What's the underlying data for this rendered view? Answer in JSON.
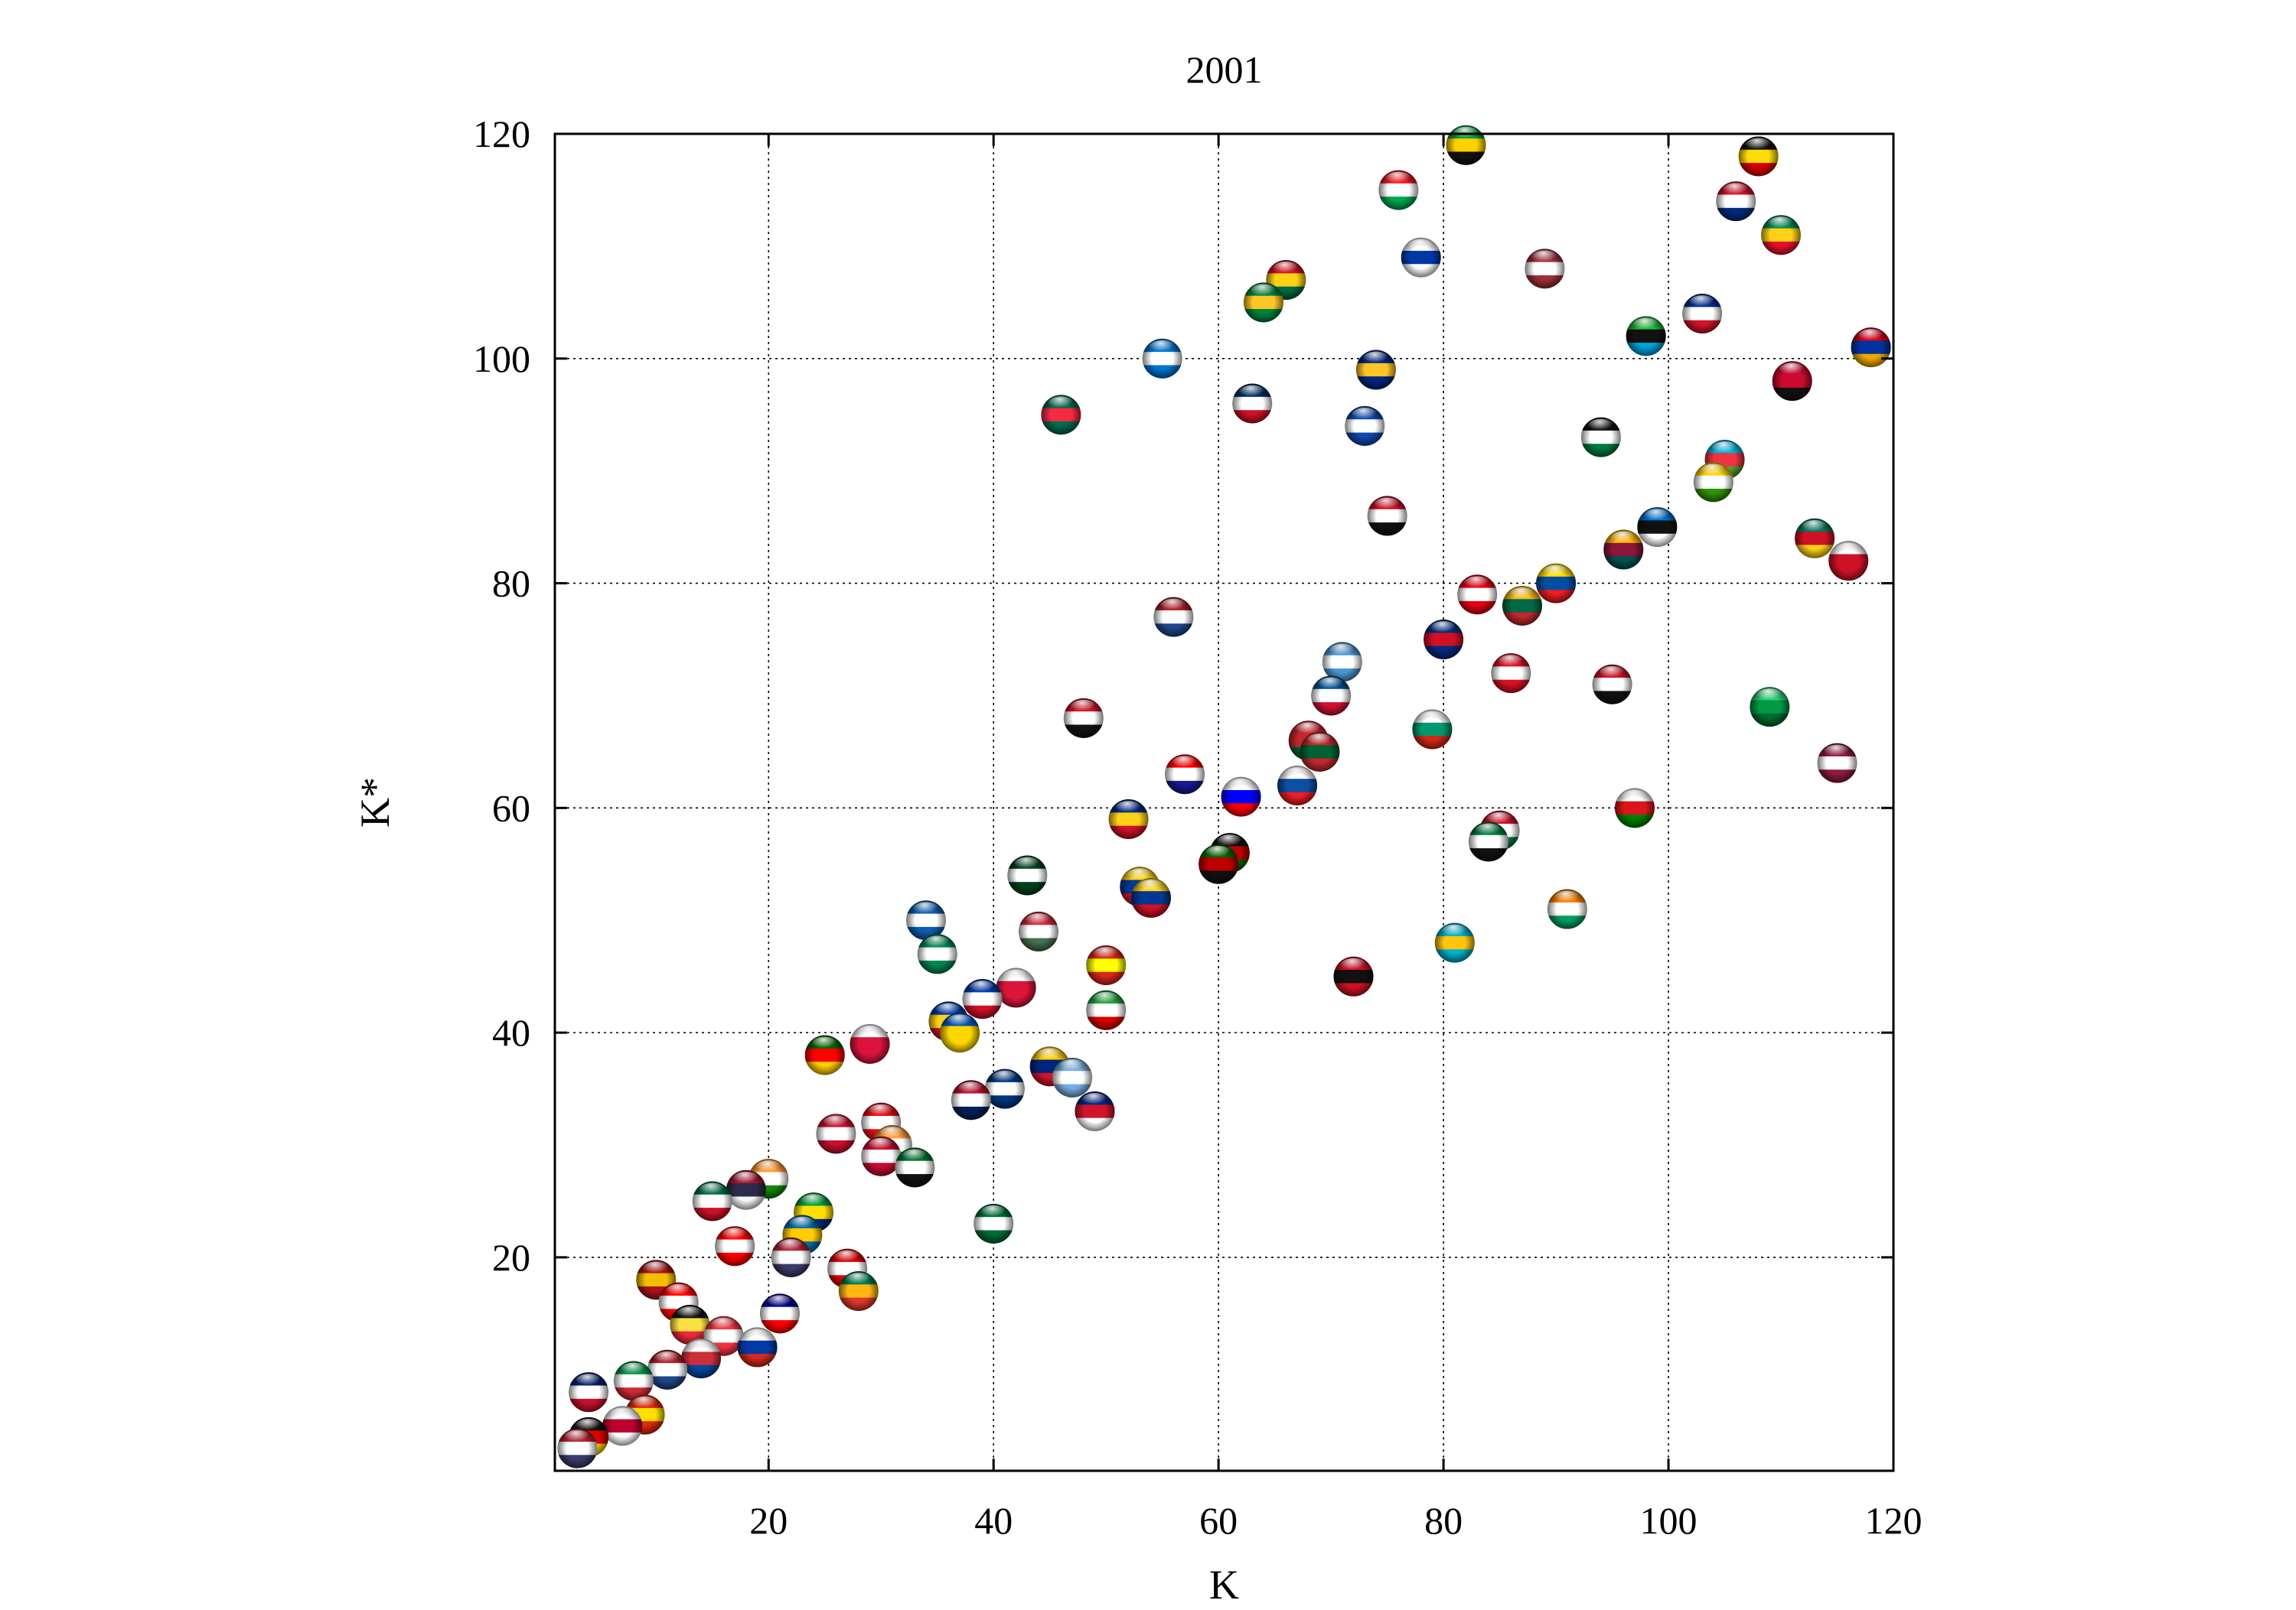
{
  "chart_data": {
    "type": "scatter",
    "title": "2001",
    "xlabel": "K",
    "ylabel": "K*",
    "xlim": [
      1,
      120
    ],
    "ylim": [
      1,
      120
    ],
    "xticks": [
      "20",
      "40",
      "60",
      "80",
      "100",
      "120"
    ],
    "yticks": [
      "20",
      "40",
      "60",
      "80",
      "100",
      "120"
    ],
    "grid": true,
    "marker": "country flag spheres",
    "points": [
      {
        "x": 82,
        "y": 119,
        "colors": [
          "#009b3a",
          "#fed100",
          "#111111"
        ]
      },
      {
        "x": 76,
        "y": 115,
        "colors": [
          "#ee161f",
          "#ffffff",
          "#00a651"
        ]
      },
      {
        "x": 108,
        "y": 118,
        "colors": [
          "#111111",
          "#fcdc04",
          "#d90000"
        ]
      },
      {
        "x": 106,
        "y": 114,
        "colors": [
          "#ce1126",
          "#ffffff",
          "#002b7f"
        ]
      },
      {
        "x": 110,
        "y": 111,
        "colors": [
          "#008751",
          "#fcd116",
          "#e8112d"
        ]
      },
      {
        "x": 66,
        "y": 107,
        "colors": [
          "#ce1126",
          "#fcd116",
          "#006b3f"
        ]
      },
      {
        "x": 64,
        "y": 105,
        "colors": [
          "#00843d",
          "#ffc726",
          "#00843d"
        ]
      },
      {
        "x": 78,
        "y": 109,
        "colors": [
          "#ffffff",
          "#0038a8",
          "#ffffff"
        ]
      },
      {
        "x": 89,
        "y": 108,
        "colors": [
          "#9e3039",
          "#ffffff",
          "#9e3039"
        ]
      },
      {
        "x": 103,
        "y": 104,
        "colors": [
          "#002a8f",
          "#ffffff",
          "#cf142b"
        ]
      },
      {
        "x": 98,
        "y": 102,
        "colors": [
          "#1eb53a",
          "#111111",
          "#00a3dd"
        ]
      },
      {
        "x": 118,
        "y": 101,
        "colors": [
          "#d90012",
          "#0033a0",
          "#f2a800"
        ]
      },
      {
        "x": 55,
        "y": 100,
        "colors": [
          "#0073cf",
          "#ffffff",
          "#0073cf"
        ]
      },
      {
        "x": 74,
        "y": 99,
        "colors": [
          "#00267f",
          "#ffc726",
          "#00267f"
        ]
      },
      {
        "x": 111,
        "y": 98,
        "colors": [
          "#cc092f",
          "#cc092f",
          "#111111"
        ]
      },
      {
        "x": 46,
        "y": 95,
        "colors": [
          "#006a4e",
          "#f42a41",
          "#006a4e"
        ]
      },
      {
        "x": 63,
        "y": 96,
        "colors": [
          "#002d62",
          "#ffffff",
          "#ce1126"
        ]
      },
      {
        "x": 73,
        "y": 94,
        "colors": [
          "#0f47af",
          "#ffffff",
          "#0f47af"
        ]
      },
      {
        "x": 94,
        "y": 93,
        "colors": [
          "#111111",
          "#ffffff",
          "#007a3d"
        ]
      },
      {
        "x": 105,
        "y": 91,
        "colors": [
          "#00b5e2",
          "#ef3340",
          "#509e2f"
        ]
      },
      {
        "x": 104,
        "y": 89,
        "colors": [
          "#ffd200",
          "#ffffff",
          "#319208"
        ]
      },
      {
        "x": 75,
        "y": 86,
        "colors": [
          "#ce1126",
          "#ffffff",
          "#111111"
        ]
      },
      {
        "x": 99,
        "y": 85,
        "colors": [
          "#0072ce",
          "#111111",
          "#ffffff"
        ]
      },
      {
        "x": 96,
        "y": 83,
        "colors": [
          "#ffb700",
          "#8d153a",
          "#00534e"
        ]
      },
      {
        "x": 113,
        "y": 84,
        "colors": [
          "#007a5e",
          "#ce1126",
          "#fcd116"
        ]
      },
      {
        "x": 116,
        "y": 82,
        "colors": [
          "#ffffff",
          "#ce1126",
          "#ce1126"
        ]
      },
      {
        "x": 83,
        "y": 79,
        "colors": [
          "#e70013",
          "#ffffff",
          "#e70013"
        ]
      },
      {
        "x": 90,
        "y": 80,
        "colors": [
          "#ffdd00",
          "#034ea2",
          "#ed1c24"
        ]
      },
      {
        "x": 87,
        "y": 78,
        "colors": [
          "#fdb913",
          "#006a44",
          "#c1272d"
        ]
      },
      {
        "x": 56,
        "y": 77,
        "colors": [
          "#ae1c28",
          "#ffffff",
          "#21468b"
        ]
      },
      {
        "x": 80,
        "y": 75,
        "colors": [
          "#002b7f",
          "#ce1126",
          "#002b7f"
        ]
      },
      {
        "x": 71,
        "y": 73,
        "colors": [
          "#4997d0",
          "#ffffff",
          "#4997d0"
        ]
      },
      {
        "x": 86,
        "y": 72,
        "colors": [
          "#d91023",
          "#ffffff",
          "#d91023"
        ]
      },
      {
        "x": 95,
        "y": 71,
        "colors": [
          "#ce1126",
          "#ffffff",
          "#111111"
        ]
      },
      {
        "x": 70,
        "y": 70,
        "colors": [
          "#005293",
          "#ffffff",
          "#d21034"
        ]
      },
      {
        "x": 48,
        "y": 68,
        "colors": [
          "#ce1126",
          "#ffffff",
          "#111111"
        ]
      },
      {
        "x": 79,
        "y": 67,
        "colors": [
          "#ffffff",
          "#00966e",
          "#d62612"
        ]
      },
      {
        "x": 68,
        "y": 66,
        "colors": [
          "#c1272d",
          "#c1272d",
          "#006233"
        ]
      },
      {
        "x": 69,
        "y": 65,
        "colors": [
          "#c1272d",
          "#006233",
          "#c1272d"
        ]
      },
      {
        "x": 109,
        "y": 69,
        "colors": [
          "#2ecc71",
          "#009a44",
          "#006b2f"
        ]
      },
      {
        "x": 115,
        "y": 64,
        "colors": [
          "#8d1b3d",
          "#ffffff",
          "#8d1b3d"
        ]
      },
      {
        "x": 57,
        "y": 63,
        "colors": [
          "#ff0000",
          "#ffffff",
          "#171796"
        ]
      },
      {
        "x": 67,
        "y": 62,
        "colors": [
          "#ffffff",
          "#0b4ea2",
          "#ee1c25"
        ]
      },
      {
        "x": 62,
        "y": 61,
        "colors": [
          "#ffffff",
          "#0000ff",
          "#ff0000"
        ]
      },
      {
        "x": 52,
        "y": 59,
        "colors": [
          "#002b7f",
          "#fcd116",
          "#ce1126"
        ]
      },
      {
        "x": 97,
        "y": 60,
        "colors": [
          "#ffffff",
          "#db161b",
          "#008000"
        ]
      },
      {
        "x": 85,
        "y": 58,
        "colors": [
          "#ce1126",
          "#ffffff",
          "#007a3d"
        ]
      },
      {
        "x": 84,
        "y": 57,
        "colors": [
          "#007a3d",
          "#ffffff",
          "#111111"
        ]
      },
      {
        "x": 61,
        "y": 56,
        "colors": [
          "#111111",
          "#bb0000",
          "#006600"
        ]
      },
      {
        "x": 60,
        "y": 55,
        "colors": [
          "#006600",
          "#bb0000",
          "#111111"
        ]
      },
      {
        "x": 43,
        "y": 54,
        "colors": [
          "#01411c",
          "#ffffff",
          "#01411c"
        ]
      },
      {
        "x": 53,
        "y": 53,
        "colors": [
          "#fcd116",
          "#003893",
          "#ce1126"
        ]
      },
      {
        "x": 54,
        "y": 52,
        "colors": [
          "#fcd116",
          "#003893",
          "#ce1126"
        ]
      },
      {
        "x": 91,
        "y": 51,
        "colors": [
          "#f77f00",
          "#ffffff",
          "#009e60"
        ]
      },
      {
        "x": 34,
        "y": 50,
        "colors": [
          "#0d5eaf",
          "#ffffff",
          "#0d5eaf"
        ]
      },
      {
        "x": 44,
        "y": 49,
        "colors": [
          "#ce2939",
          "#ffffff",
          "#477050"
        ]
      },
      {
        "x": 81,
        "y": 48,
        "colors": [
          "#00afca",
          "#fec50c",
          "#00afca"
        ]
      },
      {
        "x": 35,
        "y": 47,
        "colors": [
          "#008751",
          "#ffffff",
          "#008751"
        ]
      },
      {
        "x": 50,
        "y": 46,
        "colors": [
          "#da251d",
          "#ffff00",
          "#da251d"
        ]
      },
      {
        "x": 72,
        "y": 45,
        "colors": [
          "#ce1126",
          "#111111",
          "#ce1126"
        ]
      },
      {
        "x": 42,
        "y": 44,
        "colors": [
          "#ffffff",
          "#dc143c",
          "#dc143c"
        ]
      },
      {
        "x": 39,
        "y": 43,
        "colors": [
          "#0038a8",
          "#ffffff",
          "#ce1126"
        ]
      },
      {
        "x": 50,
        "y": 42,
        "colors": [
          "#239f40",
          "#ffffff",
          "#da0000"
        ]
      },
      {
        "x": 36,
        "y": 41,
        "colors": [
          "#0038a8",
          "#fcd116",
          "#ce1126"
        ]
      },
      {
        "x": 37,
        "y": 40,
        "colors": [
          "#0057b7",
          "#ffd700",
          "#ffd700"
        ]
      },
      {
        "x": 29,
        "y": 39,
        "colors": [
          "#ffffff",
          "#dc143c",
          "#dc143c"
        ]
      },
      {
        "x": 25,
        "y": 38,
        "colors": [
          "#006600",
          "#ff0000",
          "#ffcc00"
        ]
      },
      {
        "x": 45,
        "y": 37,
        "colors": [
          "#ffcc00",
          "#00247d",
          "#cf142b"
        ]
      },
      {
        "x": 47,
        "y": 36,
        "colors": [
          "#74acdf",
          "#ffffff",
          "#74acdf"
        ]
      },
      {
        "x": 41,
        "y": 35,
        "colors": [
          "#003580",
          "#ffffff",
          "#003580"
        ]
      },
      {
        "x": 38,
        "y": 34,
        "colors": [
          "#ba0c2f",
          "#ffffff",
          "#00205b"
        ]
      },
      {
        "x": 49,
        "y": 33,
        "colors": [
          "#00247d",
          "#cf142b",
          "#ffffff"
        ]
      },
      {
        "x": 30,
        "y": 32,
        "colors": [
          "#e30a17",
          "#ffffff",
          "#e30a17"
        ]
      },
      {
        "x": 26,
        "y": 31,
        "colors": [
          "#c8102e",
          "#ffffff",
          "#c8102e"
        ]
      },
      {
        "x": 31,
        "y": 30,
        "colors": [
          "#ff9933",
          "#ffffff",
          "#138808"
        ]
      },
      {
        "x": 30,
        "y": 29,
        "colors": [
          "#c60c30",
          "#ffffff",
          "#c60c30"
        ]
      },
      {
        "x": 33,
        "y": 28,
        "colors": [
          "#00732f",
          "#ffffff",
          "#111111"
        ]
      },
      {
        "x": 20,
        "y": 27,
        "colors": [
          "#ff9933",
          "#ffffff",
          "#138808"
        ]
      },
      {
        "x": 18,
        "y": 26,
        "colors": [
          "#a51931",
          "#2d2a4a",
          "#f4f5f8"
        ]
      },
      {
        "x": 15,
        "y": 25,
        "colors": [
          "#006847",
          "#ffffff",
          "#ce1126"
        ]
      },
      {
        "x": 24,
        "y": 24,
        "colors": [
          "#009c3b",
          "#ffdf00",
          "#002776"
        ]
      },
      {
        "x": 40,
        "y": 23,
        "colors": [
          "#006c35",
          "#ffffff",
          "#006c35"
        ]
      },
      {
        "x": 23,
        "y": 22,
        "colors": [
          "#006aa7",
          "#fecc00",
          "#006aa7"
        ]
      },
      {
        "x": 17,
        "y": 21,
        "colors": [
          "#ff0000",
          "#ffffff",
          "#ff0000"
        ]
      },
      {
        "x": 22,
        "y": 20,
        "colors": [
          "#b22234",
          "#ffffff",
          "#3c3b6e"
        ]
      },
      {
        "x": 27,
        "y": 19,
        "colors": [
          "#e00000",
          "#ffffff",
          "#e00000"
        ]
      },
      {
        "x": 10,
        "y": 18,
        "colors": [
          "#aa151b",
          "#f1bf00",
          "#aa151b"
        ]
      },
      {
        "x": 28,
        "y": 17,
        "colors": [
          "#007a4d",
          "#ffb612",
          "#de3831"
        ]
      },
      {
        "x": 12,
        "y": 16,
        "colors": [
          "#ff0000",
          "#ffffff",
          "#ff0000"
        ]
      },
      {
        "x": 21,
        "y": 15,
        "colors": [
          "#00008b",
          "#ffffff",
          "#ff0000"
        ]
      },
      {
        "x": 13,
        "y": 14,
        "colors": [
          "#111111",
          "#fae042",
          "#ed2939"
        ]
      },
      {
        "x": 16,
        "y": 13,
        "colors": [
          "#ef3340",
          "#ffffff",
          "#ef3340"
        ]
      },
      {
        "x": 19,
        "y": 12,
        "colors": [
          "#ffffff",
          "#0039a6",
          "#d52b1e"
        ]
      },
      {
        "x": 14,
        "y": 11,
        "colors": [
          "#ffffff",
          "#cd2e3a",
          "#0047a0"
        ]
      },
      {
        "x": 11,
        "y": 10,
        "colors": [
          "#ae1c28",
          "#ffffff",
          "#21468b"
        ]
      },
      {
        "x": 8,
        "y": 9,
        "colors": [
          "#009246",
          "#ffffff",
          "#ce2b37"
        ]
      },
      {
        "x": 4,
        "y": 8,
        "colors": [
          "#012169",
          "#ffffff",
          "#c8102e"
        ]
      },
      {
        "x": 9,
        "y": 6,
        "colors": [
          "#de2910",
          "#ffde00",
          "#de2910"
        ]
      },
      {
        "x": 7,
        "y": 5,
        "colors": [
          "#ffffff",
          "#bc002d",
          "#ffffff"
        ]
      },
      {
        "x": 4,
        "y": 4,
        "colors": [
          "#111111",
          "#dd0000",
          "#ffce00"
        ]
      },
      {
        "x": 3,
        "y": 3,
        "colors": [
          "#b22234",
          "#ffffff",
          "#3c3b6e"
        ]
      }
    ]
  }
}
